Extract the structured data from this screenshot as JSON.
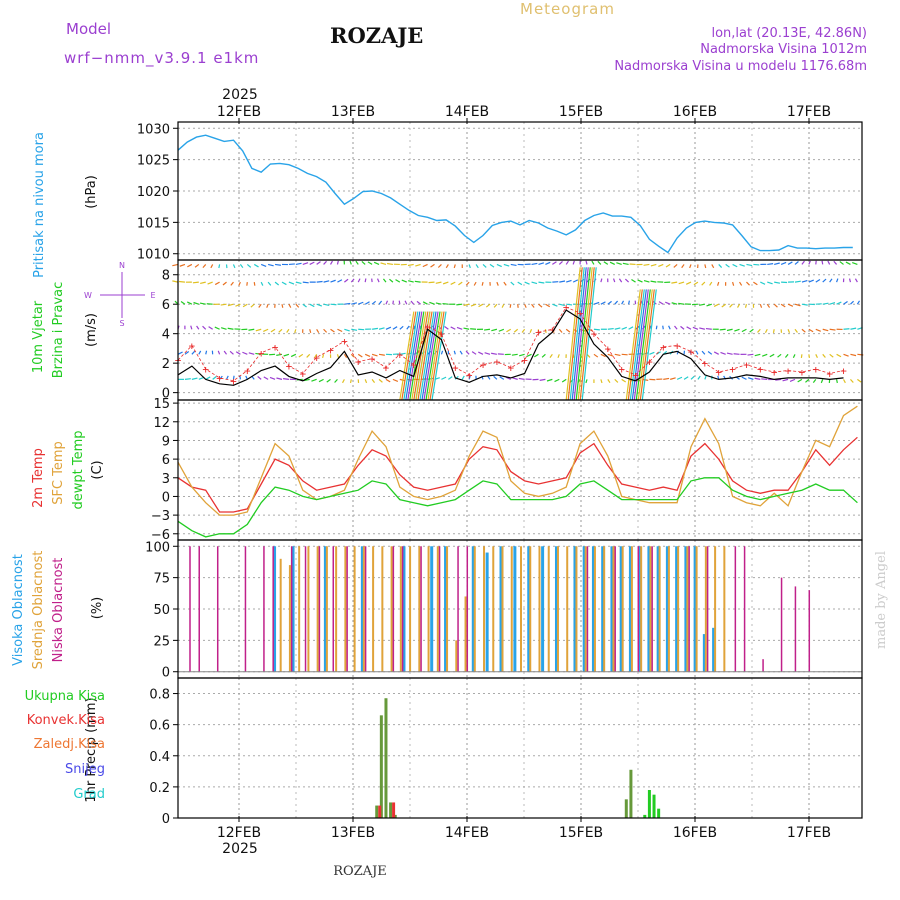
{
  "header": {
    "model_label": "Model",
    "model_name": "wrf−nmm_v3.9.1  e1km",
    "station": "ROZAJE",
    "product": "Meteogram",
    "lonlat": "lon,lat (20.13E, 42.86N)",
    "elevation": "Nadmorska Visina 1012m",
    "model_elevation": "Nadmorska Visina u modelu 1176.68m",
    "watermark": "made by Angel",
    "footer_station": "ROZAJE"
  },
  "colors": {
    "pressure": "#29a3e8",
    "wind_speed": "#000000",
    "gust": "#e82a2a",
    "t2m": "#e83232",
    "sfc": "#e0a33a",
    "dewpt": "#22cc22",
    "high_cloud": "#29a3e8",
    "mid_cloud": "#e0a33a",
    "low_cloud": "#c0208a",
    "total_precip": "#66993a",
    "conv_precip": "#e83232",
    "purple": "#9b3fd0"
  },
  "time_axis": {
    "year": "2025",
    "days": [
      "12FEB",
      "13FEB",
      "14FEB",
      "15FEB",
      "16FEB",
      "17FEB"
    ]
  },
  "chart_data": [
    {
      "type": "line",
      "panel": "pressure",
      "ylabel": "Pritisak na nivou mora",
      "unit": "(hPa)",
      "ylim": [
        1009,
        1031
      ],
      "yticks": [
        "1010",
        "1015",
        "1020",
        "1025",
        "1030"
      ],
      "x_hours": [
        0,
        2,
        4,
        6,
        8,
        10,
        12,
        14,
        16,
        18,
        20,
        22,
        24,
        26,
        28,
        30,
        32,
        34,
        36,
        38,
        40,
        42,
        44,
        46,
        48,
        50,
        52,
        54,
        56,
        58,
        60,
        62,
        64,
        66,
        68,
        70,
        72,
        74,
        76,
        78,
        80,
        82,
        84,
        86,
        88,
        90,
        92,
        94,
        96,
        98,
        100,
        102,
        104,
        106,
        108,
        110,
        112,
        114,
        116,
        118,
        120,
        122,
        124,
        126,
        128,
        130,
        132,
        134,
        136,
        138,
        140,
        142,
        144,
        146
      ],
      "series": [
        {
          "values": [
            1026.5,
            1027.8,
            1028.6,
            1028.9,
            1028.4,
            1027.9,
            1028.1,
            1026.4,
            1023.6,
            1023.0,
            1024.3,
            1024.4,
            1024.2,
            1023.6,
            1022.8,
            1022.3,
            1021.4,
            1019.6,
            1017.9,
            1018.8,
            1019.9,
            1020.0,
            1019.6,
            1018.9,
            1017.9,
            1016.9,
            1016.1,
            1015.8,
            1015.3,
            1015.4,
            1014.4,
            1012.9,
            1011.8,
            1012.9,
            1014.5,
            1015.0,
            1015.2,
            1014.6,
            1015.3,
            1014.9,
            1014.1,
            1013.6,
            1013.0,
            1013.8,
            1015.3,
            1016.1,
            1016.5,
            1016.0,
            1016.0,
            1015.8,
            1014.5,
            1012.3,
            1011.2,
            1010.2,
            1012.5,
            1014.1,
            1015.0,
            1015.2,
            1015.0,
            1014.9,
            1014.6,
            1012.9,
            1011.1,
            1010.5,
            1010.5,
            1010.6,
            1011.3,
            1010.9,
            1010.9,
            1010.8,
            1010.9,
            1010.9,
            1011.0,
            1011.0
          ]
        }
      ]
    },
    {
      "type": "line",
      "panel": "wind",
      "ylabel": "10m Vjetar Brzina i Pravac",
      "unit": "(m/s)",
      "ylim": [
        -0.5,
        9
      ],
      "yticks": [
        "0",
        "2",
        "4",
        "6",
        "8"
      ],
      "direction_key": [
        "N",
        "W",
        "E",
        "S"
      ],
      "x_hours": [
        0,
        3,
        6,
        9,
        12,
        15,
        18,
        21,
        24,
        27,
        30,
        33,
        36,
        39,
        42,
        45,
        48,
        51,
        54,
        57,
        60,
        63,
        66,
        69,
        72,
        75,
        78,
        81,
        84,
        87,
        90,
        93,
        96,
        99,
        102,
        105,
        108,
        111,
        114,
        117,
        120,
        123,
        126,
        129,
        132,
        135,
        138,
        141,
        144
      ],
      "series": [
        {
          "name": "speed",
          "values": [
            1.2,
            1.8,
            0.9,
            0.6,
            0.5,
            0.9,
            1.5,
            1.8,
            1.1,
            0.8,
            1.3,
            1.7,
            2.8,
            1.2,
            1.4,
            1.0,
            1.5,
            1.1,
            4.3,
            3.6,
            1.0,
            0.7,
            1.1,
            1.2,
            1.0,
            1.3,
            3.3,
            4.1,
            5.6,
            5.0,
            3.3,
            2.4,
            1.1,
            0.8,
            1.4,
            2.6,
            2.8,
            2.3,
            1.2,
            0.9,
            1.0,
            1.2,
            1.1,
            0.9,
            1.0,
            1.0,
            1.0,
            0.9,
            1.0
          ]
        },
        {
          "name": "gust",
          "values": [
            2.2,
            3.2,
            1.6,
            1.0,
            0.8,
            1.5,
            2.7,
            3.1,
            1.8,
            1.3,
            2.4,
            2.9,
            3.5,
            2.1,
            2.3,
            1.7,
            2.6,
            1.9,
            4.5,
            4.0,
            1.7,
            1.2,
            1.9,
            2.1,
            1.7,
            2.2,
            4.1,
            4.3,
            5.8,
            5.4,
            4.0,
            3.0,
            1.6,
            1.2,
            2.1,
            3.1,
            3.2,
            2.8,
            2.0,
            1.4,
            1.6,
            1.9,
            1.6,
            1.4,
            1.5,
            1.4,
            1.6,
            1.3,
            1.5
          ]
        }
      ]
    },
    {
      "type": "line",
      "panel": "temperature",
      "ylabel": "2m Temp / SFC Temp / dewpt Temp",
      "unit": "(C)",
      "ylim": [
        -7,
        15.5
      ],
      "yticks": [
        "−6",
        "−3",
        "0",
        "3",
        "6",
        "9",
        "12",
        "15"
      ],
      "x_hours": [
        0,
        3,
        6,
        9,
        12,
        15,
        18,
        21,
        24,
        27,
        30,
        33,
        36,
        39,
        42,
        45,
        48,
        51,
        54,
        57,
        60,
        63,
        66,
        69,
        72,
        75,
        78,
        81,
        84,
        87,
        90,
        93,
        96,
        99,
        102,
        105,
        108,
        111,
        114,
        117,
        120,
        123,
        126,
        129,
        132,
        135,
        138,
        141,
        144,
        147
      ],
      "series": [
        {
          "name": "2m Temp",
          "values": [
            3.0,
            1.5,
            1.0,
            -2.5,
            -2.5,
            -2.0,
            2.0,
            6.0,
            5.0,
            2.5,
            1.0,
            1.5,
            2.0,
            5.0,
            7.5,
            6.5,
            3.5,
            1.5,
            1.0,
            1.5,
            2.0,
            6.0,
            8.0,
            7.5,
            4.0,
            2.5,
            2.0,
            2.5,
            3.0,
            7.0,
            8.5,
            5.0,
            2.0,
            1.5,
            1.0,
            1.5,
            1.0,
            6.5,
            8.5,
            6.0,
            2.5,
            1.0,
            0.5,
            1.0,
            1.0,
            4.0,
            7.5,
            5.0,
            7.5,
            9.5
          ]
        },
        {
          "name": "SFC Temp",
          "values": [
            5.5,
            1.5,
            -1.0,
            -3.0,
            -3.0,
            -2.5,
            3.0,
            8.5,
            6.5,
            1.0,
            -0.5,
            0.0,
            1.0,
            6.0,
            10.5,
            8.0,
            1.5,
            0.0,
            -0.5,
            0.0,
            1.0,
            6.5,
            10.5,
            9.5,
            2.5,
            0.5,
            0.0,
            0.5,
            1.5,
            8.5,
            10.5,
            6.5,
            0.0,
            -0.5,
            -1.0,
            -1.0,
            -1.0,
            8.0,
            12.5,
            8.5,
            0.0,
            -1.0,
            -1.5,
            0.5,
            -1.5,
            4.0,
            9.0,
            8.0,
            13.0,
            14.5
          ]
        },
        {
          "name": "dewpt Temp",
          "values": [
            -4.0,
            -5.5,
            -6.5,
            -6.0,
            -6.0,
            -4.5,
            -1.0,
            1.5,
            1.0,
            0.0,
            -0.5,
            0.0,
            0.5,
            1.0,
            2.5,
            2.0,
            -0.5,
            -1.0,
            -1.5,
            -1.0,
            -0.5,
            1.0,
            2.5,
            2.0,
            -0.5,
            -0.5,
            -0.5,
            -0.5,
            0.0,
            2.0,
            2.5,
            1.0,
            -0.5,
            -0.5,
            -0.5,
            -0.5,
            -0.5,
            2.5,
            3.0,
            3.0,
            1.0,
            0.0,
            -0.5,
            0.0,
            0.5,
            1.0,
            2.0,
            1.0,
            1.0,
            -1.0
          ]
        }
      ]
    },
    {
      "type": "bar",
      "panel": "cloud",
      "ylabel": "Visoka Oblacnost / Srednja Oblacnost / Niska Oblacnost",
      "unit": "(%)",
      "ylim": [
        -5,
        105
      ],
      "yticks": [
        "0",
        "25",
        "50",
        "75",
        "100"
      ],
      "series": [
        {
          "name": "Visoka Oblacnost",
          "x_hours": [
            21,
            25,
            32,
            40,
            49,
            55,
            58,
            64,
            67,
            70,
            73,
            76,
            79,
            82,
            86,
            88,
            90,
            92,
            94,
            96,
            98,
            100,
            102,
            104,
            106,
            108,
            110,
            112,
            114,
            116
          ],
          "values": [
            100,
            100,
            100,
            100,
            100,
            100,
            100,
            100,
            95,
            100,
            100,
            100,
            100,
            100,
            100,
            100,
            100,
            100,
            100,
            100,
            100,
            100,
            100,
            100,
            100,
            100,
            100,
            100,
            30,
            35
          ]
        },
        {
          "name": "Srednja Oblacnost",
          "x_hours": [
            22,
            24,
            26,
            28,
            30,
            32,
            34,
            36,
            38,
            40,
            42,
            44,
            46,
            48,
            50,
            52,
            54,
            56,
            58,
            60,
            62,
            64,
            66,
            68,
            70,
            72,
            74,
            76,
            78,
            80,
            82,
            84,
            86,
            88,
            90,
            92,
            94,
            96,
            98,
            100,
            102,
            104,
            106,
            108,
            110,
            112,
            114,
            116,
            118
          ],
          "values": [
            90,
            85,
            100,
            100,
            100,
            100,
            100,
            100,
            100,
            100,
            100,
            100,
            100,
            100,
            100,
            100,
            100,
            100,
            100,
            25,
            60,
            100,
            100,
            100,
            100,
            100,
            100,
            100,
            100,
            100,
            100,
            100,
            100,
            100,
            100,
            100,
            100,
            100,
            100,
            100,
            100,
            100,
            100,
            100,
            100,
            100,
            100,
            100,
            100
          ]
        },
        {
          "name": "Niska Oblacnost",
          "x_hours": [
            2,
            4,
            8,
            14,
            18,
            20,
            24,
            27,
            30,
            33,
            36,
            40,
            46,
            48,
            52,
            56,
            60,
            62,
            88,
            94,
            99,
            102,
            110,
            114,
            120,
            122,
            126,
            130,
            133,
            136
          ],
          "values": [
            100,
            100,
            100,
            100,
            100,
            100,
            100,
            100,
            100,
            100,
            100,
            100,
            100,
            100,
            100,
            100,
            100,
            100,
            100,
            100,
            100,
            100,
            100,
            100,
            100,
            100,
            10,
            75,
            68,
            65
          ]
        }
      ]
    },
    {
      "type": "bar",
      "panel": "precipitation",
      "ylabel": "1hr Precip (mm)",
      "ylim": [
        0,
        0.9
      ],
      "yticks": [
        "0",
        "0.2",
        "0.4",
        "0.6",
        "0.8"
      ],
      "legend": [
        "Ukupna Kisa",
        "Konvek.Kisa",
        "Zaledj.Kisa",
        "Snijeg",
        "Grad"
      ],
      "series": [
        {
          "name": "Ukupna Kisa",
          "x_hours": [
            43,
            44,
            45,
            46,
            47,
            97,
            98,
            101,
            102,
            103,
            104
          ],
          "values": [
            0.08,
            0.66,
            0.77,
            0.1,
            0.02,
            0.12,
            0.31,
            0.02,
            0.18,
            0.15,
            0.06
          ]
        },
        {
          "name": "Konvek.Kisa",
          "x_hours": [
            43,
            46
          ],
          "values": [
            0.08,
            0.1
          ]
        }
      ]
    }
  ]
}
